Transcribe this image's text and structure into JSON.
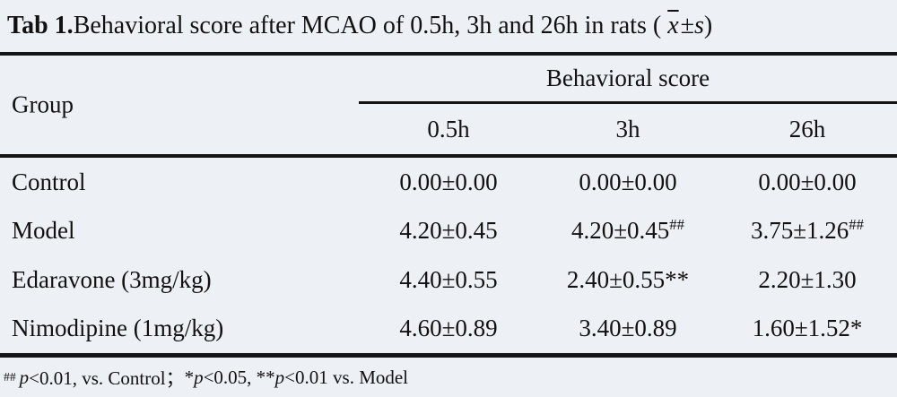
{
  "title": {
    "label": "Tab 1.",
    "text": " Behavioral score after MCAO of 0.5h, 3h and 26h in rats (",
    "mean_symbol": "x",
    "pm": " ± ",
    "sd_symbol": "s",
    "paren_close": ")"
  },
  "table": {
    "group_header": "Group",
    "span_header": "Behavioral score",
    "columns": [
      "0.5h",
      "3h",
      "26h"
    ],
    "rows": [
      {
        "group": "Control",
        "values": [
          {
            "text": "0.00±0.00",
            "sup": ""
          },
          {
            "text": "0.00±0.00",
            "sup": ""
          },
          {
            "text": "0.00±0.00",
            "sup": ""
          }
        ]
      },
      {
        "group": "Model",
        "values": [
          {
            "text": "4.20±0.45",
            "sup": ""
          },
          {
            "text": "4.20±0.45",
            "sup": "##"
          },
          {
            "text": "3.75±1.26",
            "sup": "##"
          }
        ]
      },
      {
        "group": "Edaravone (3mg/kg)",
        "values": [
          {
            "text": "4.40±0.55",
            "sup": ""
          },
          {
            "text": "2.40±0.55**",
            "sup": ""
          },
          {
            "text": "2.20±1.30",
            "sup": ""
          }
        ]
      },
      {
        "group": "Nimodipine (1mg/kg)",
        "values": [
          {
            "text": "4.60±0.89",
            "sup": ""
          },
          {
            "text": "3.40±0.89",
            "sup": ""
          },
          {
            "text": "1.60±1.52*",
            "sup": ""
          }
        ]
      }
    ]
  },
  "footnote": {
    "sup": "##",
    "p1": "p",
    "t1": "<0.01, vs. Control；  ",
    "t2": "* ",
    "p2": "p",
    "t3": "<0.05, ** ",
    "p3": "p",
    "t4": "<0.01 vs. Model"
  },
  "colors": {
    "background": "#edf1f5",
    "text": "#111111",
    "rule": "#141414"
  }
}
